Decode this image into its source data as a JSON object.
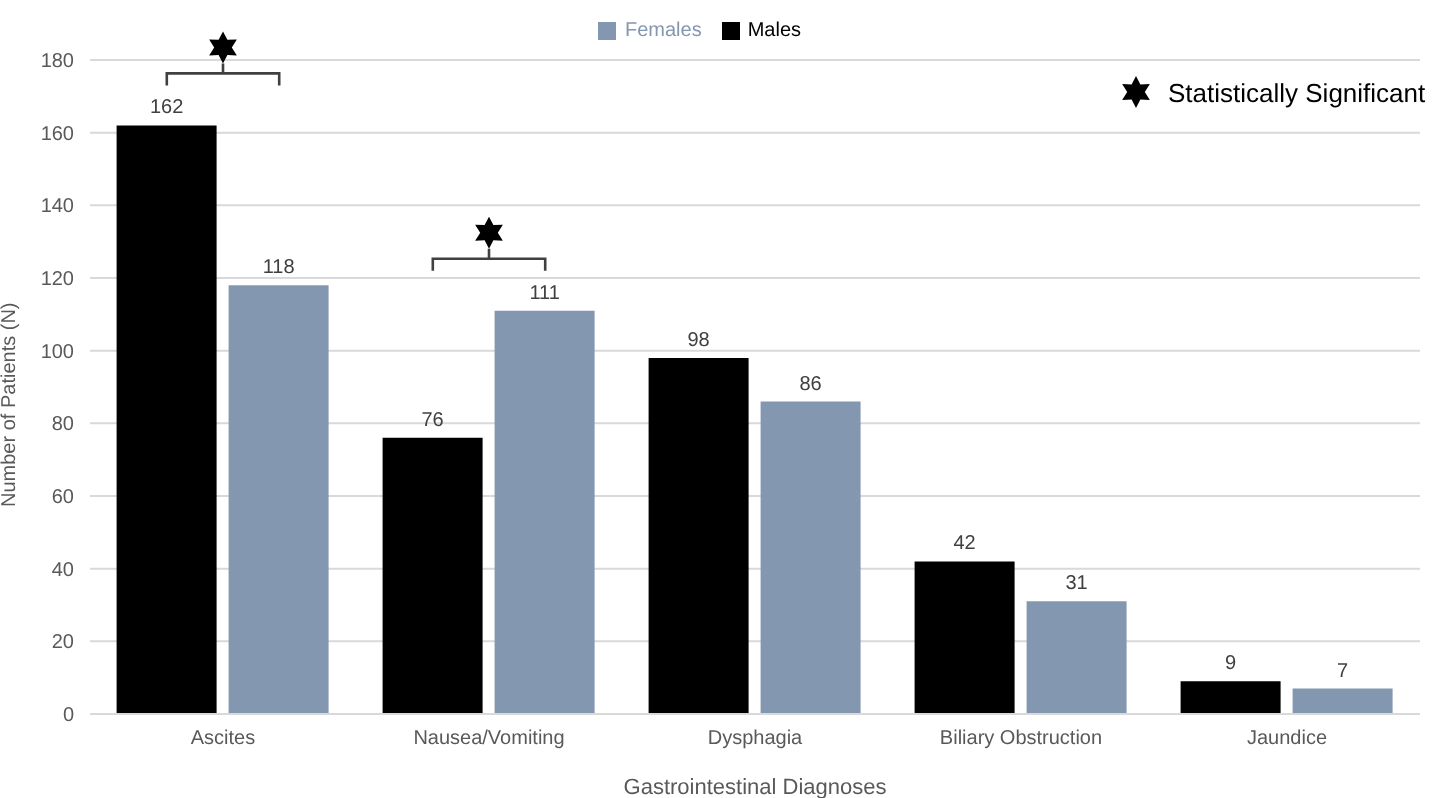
{
  "chart_data": {
    "type": "bar",
    "xlabel": "Gastrointestinal Diagnoses",
    "ylabel": "Number of Patients (N)",
    "categories": [
      "Ascites",
      "Nausea/Vomiting",
      "Dysphagia",
      "Biliary Obstruction",
      "Jaundice"
    ],
    "series": [
      {
        "name": "Males",
        "color": "#000000",
        "values": [
          162,
          76,
          98,
          42,
          9
        ]
      },
      {
        "name": "Females",
        "color": "#8497b0",
        "values": [
          118,
          111,
          86,
          31,
          7
        ]
      }
    ],
    "ylim": [
      0,
      180
    ],
    "yticks": [
      0,
      20,
      40,
      60,
      80,
      100,
      120,
      140,
      160,
      180
    ],
    "grid": "y",
    "legend": "top",
    "data_labels": true,
    "annotations": [
      "Statistically Significant"
    ]
  }
}
